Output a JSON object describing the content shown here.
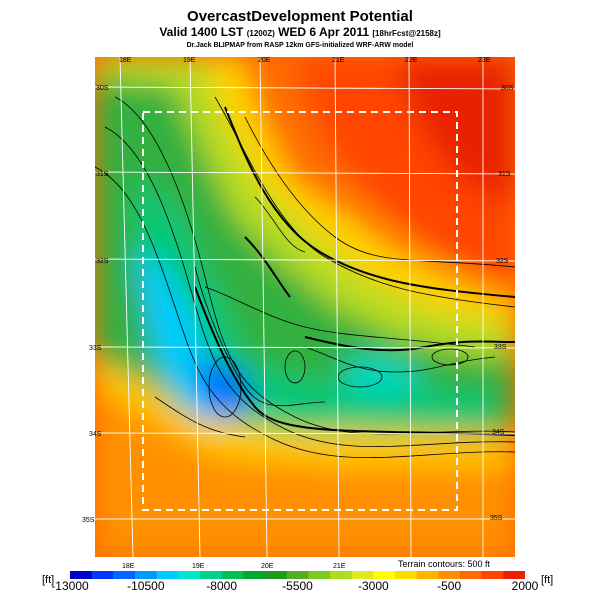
{
  "header": {
    "title": "OvercastDevelopment Potential",
    "valid": "Valid 1400 LST",
    "valid_utc": "(1200Z)",
    "date": "WED 6 Apr 2011",
    "fcst": "[18hrFcst@2158z]",
    "credit": "Dr.Jack BLIPMAP from RASP 12km GFS-initialized WRF-ARW model"
  },
  "map": {
    "top_lon_labels": [
      "18E",
      "19E",
      "20E",
      "21E",
      "22E",
      "23E"
    ],
    "bottom_lon_labels": [
      "18E",
      "19E",
      "20E",
      "21E"
    ],
    "left_lat_labels": [
      "30S",
      "31S",
      "32S",
      "33S",
      "34S",
      "35S"
    ],
    "right_lat_labels": [
      "30S",
      "31S",
      "32S",
      "33S",
      "34S",
      "35S"
    ],
    "terrain_note": "Terrain contours: 500 ft"
  },
  "colorbar": {
    "unit": "[ft]",
    "tick_labels": [
      "-13000",
      "-10500",
      "-8000",
      "-5500",
      "-3000",
      "-500",
      "2000"
    ],
    "tick_values": [
      -13000,
      -10500,
      -8000,
      -5500,
      -3000,
      -500,
      2000
    ],
    "range": [
      -13000,
      2000
    ],
    "colors": [
      "#0000c8",
      "#0033ff",
      "#0066ff",
      "#0099ff",
      "#00ccff",
      "#00e5cc",
      "#00d28c",
      "#00c050",
      "#00a830",
      "#209a20",
      "#50b020",
      "#80c820",
      "#b0dc20",
      "#dcea20",
      "#ffff00",
      "#ffdc00",
      "#ffb400",
      "#ff9000",
      "#ff6a00",
      "#ff4400",
      "#e82200"
    ]
  }
}
